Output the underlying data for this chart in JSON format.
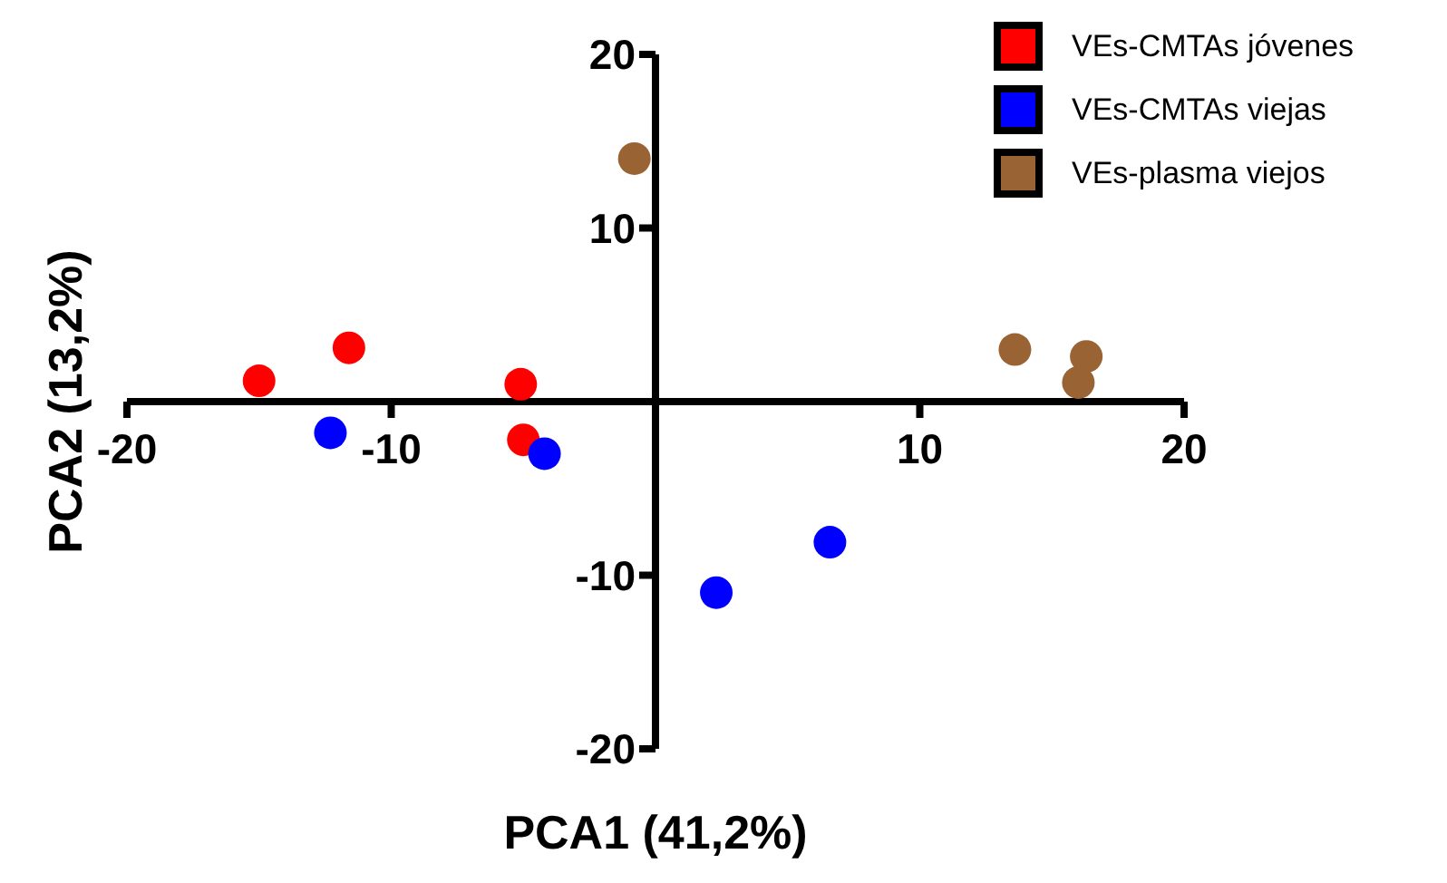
{
  "chart_data": {
    "type": "scatter",
    "xlabel": "PCA1 (41,2%)",
    "ylabel": "PCA2 (13,2%)",
    "xlim": [
      -20,
      20
    ],
    "xticks": [
      -20,
      -10,
      10,
      20
    ],
    "ylim": [
      -20,
      20
    ],
    "yticks": [
      -20,
      -10,
      10,
      20
    ],
    "grid": false,
    "legend": "top right",
    "marker": "circle",
    "series": [
      {
        "name": "VEs-CMTAs jóvenes",
        "color": "#ff0000",
        "x": [
          -15.0,
          -11.6,
          -5.1,
          -5.0
        ],
        "values": [
          1.2,
          3.1,
          1.0,
          -2.2
        ]
      },
      {
        "name": "VEs-CMTAs viejas",
        "color": "#0000ff",
        "x": [
          -12.3,
          -4.2,
          2.3,
          6.6
        ],
        "values": [
          -1.8,
          -3.0,
          -11.0,
          -8.1
        ]
      },
      {
        "name": "VEs-plasma viejos",
        "color": "#9a6334",
        "x": [
          -0.8,
          13.6,
          16.3,
          16.0
        ],
        "values": [
          14.0,
          3.0,
          2.6,
          1.1
        ]
      }
    ]
  }
}
